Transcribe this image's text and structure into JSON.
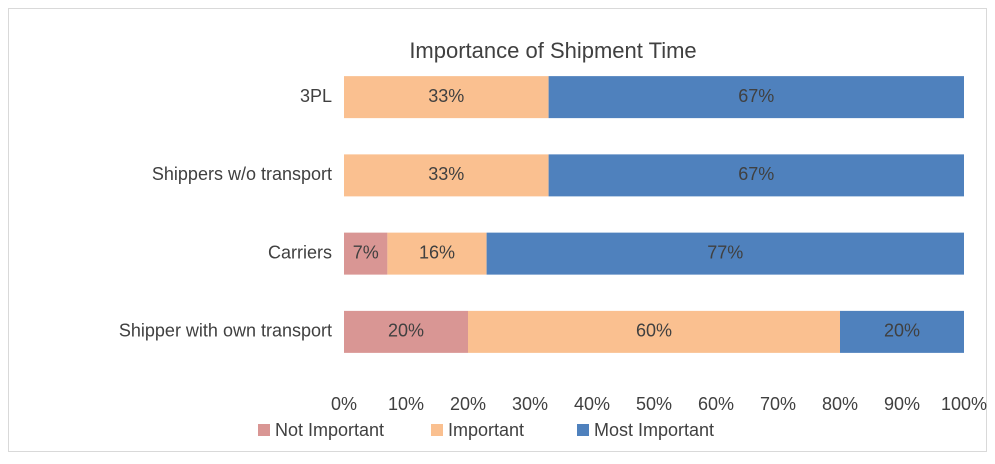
{
  "chart_data": {
    "type": "stacked_bar_horizontal",
    "title": "Importance  of Shipment Time",
    "categories": [
      "3PL",
      "Shippers w/o transport",
      "Carriers",
      "Shipper with own transport"
    ],
    "series": [
      {
        "name": "Not Important",
        "color": "#d99694",
        "values": [
          0,
          0,
          7,
          20
        ],
        "value_labels": [
          null,
          null,
          "7%",
          "20%"
        ]
      },
      {
        "name": "Important",
        "color": "#fac090",
        "values": [
          33,
          33,
          16,
          60
        ],
        "value_labels": [
          "33%",
          "33%",
          "16%",
          "60%"
        ]
      },
      {
        "name": "Most Important",
        "color": "#4f81bd",
        "values": [
          67,
          67,
          77,
          20
        ],
        "value_labels": [
          "67%",
          "67%",
          "77%",
          "20%"
        ]
      }
    ],
    "xlim": [
      0,
      100
    ],
    "xticks": [
      {
        "value": 0,
        "label": "0%"
      },
      {
        "value": 10,
        "label": "10%"
      },
      {
        "value": 20,
        "label": "20%"
      },
      {
        "value": 30,
        "label": "30%"
      },
      {
        "value": 40,
        "label": "40%"
      },
      {
        "value": 50,
        "label": "50%"
      },
      {
        "value": 60,
        "label": "60%"
      },
      {
        "value": 70,
        "label": "70%"
      },
      {
        "value": 80,
        "label": "80%"
      },
      {
        "value": 90,
        "label": "90%"
      },
      {
        "value": 100,
        "label": "100%"
      }
    ],
    "legend": "bottom"
  }
}
